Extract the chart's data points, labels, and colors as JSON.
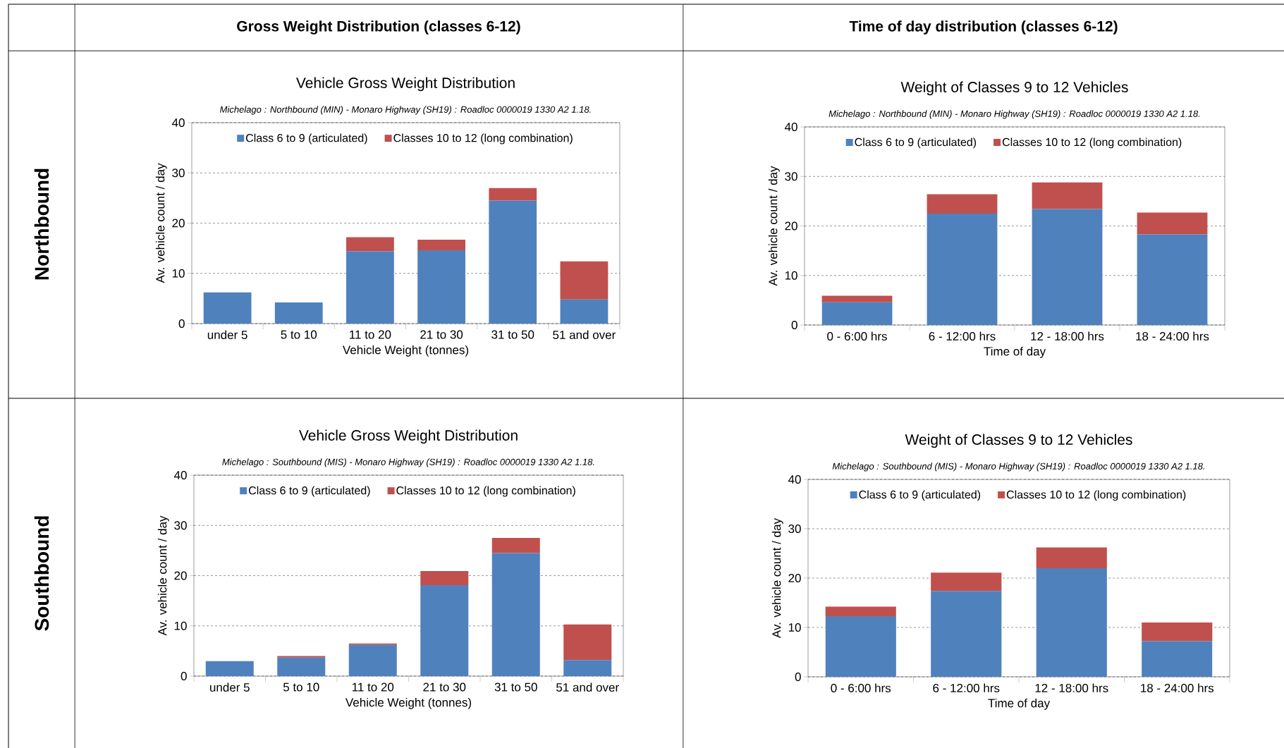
{
  "chart_data": [
    {
      "type": "bar",
      "title": "Vehicle Gross Weight Distribution",
      "subtitle": "Michelago : Northbound (MIN) - Monaro Highway (SH19) : Roadloc 0000019 1330 A2  1.18.",
      "xlabel": "Vehicle Weight (tonnes)",
      "ylabel": "Av. vehicle count / day",
      "annotations": [
        "Gross Weight Distribution (classes 6-12)",
        "Northbound"
      ],
      "categories": [
        "under 5",
        "5 to 10",
        "11 to 20",
        "21 to 30",
        "31 to 50",
        "51 and over"
      ],
      "stacked": true,
      "ylim": [
        0,
        40
      ],
      "yticks": [
        0,
        10,
        20,
        30,
        40
      ],
      "grid": "y",
      "legend": "top",
      "series": [
        {
          "name": "Class 6 to 9 (articulated)",
          "color": "#4f81bd",
          "values": [
            6.2,
            4.2,
            14.4,
            14.6,
            24.5,
            4.8
          ]
        },
        {
          "name": "Classes 10 to 12 (long combination)",
          "color": "#c0504d",
          "values": [
            0,
            0,
            2.8,
            2.1,
            2.5,
            7.6
          ]
        }
      ]
    },
    {
      "type": "bar",
      "title": "Weight of Classes 9 to 12 Vehicles",
      "subtitle": "Michelago : Northbound (MIN) - Monaro Highway (SH19) : Roadloc 0000019 1330 A2  1.18.",
      "xlabel": "Time of day",
      "ylabel": "Av. vehicle count / day",
      "annotations": [
        "Time of day distribution (classes 6-12)"
      ],
      "categories": [
        "0 - 6:00 hrs",
        "6 - 12:00 hrs",
        "12 - 18:00 hrs",
        "18 - 24:00 hrs"
      ],
      "stacked": true,
      "ylim": [
        0,
        40
      ],
      "yticks": [
        0,
        10,
        20,
        30,
        40
      ],
      "grid": "y",
      "legend": "top",
      "series": [
        {
          "name": "Class 6 to 9 (articulated)",
          "color": "#4f81bd",
          "values": [
            4.6,
            22.5,
            23.4,
            18.3
          ]
        },
        {
          "name": "Classes 10 to 12 (long combination)",
          "color": "#c0504d",
          "values": [
            1.3,
            3.9,
            5.4,
            4.4
          ]
        }
      ]
    },
    {
      "type": "bar",
      "title": "Vehicle Gross Weight Distribution",
      "subtitle": "Michelago : Southbound (MIS) - Monaro Highway (SH19) : Roadloc 0000019 1330 A2  1.18.",
      "xlabel": "Vehicle Weight (tonnes)",
      "ylabel": "Av. vehicle count / day",
      "annotations": [
        "Southbound"
      ],
      "categories": [
        "under 5",
        "5 to 10",
        "11 to 20",
        "21 to 30",
        "31 to 50",
        "51 and over"
      ],
      "stacked": true,
      "ylim": [
        0,
        40
      ],
      "yticks": [
        0,
        10,
        20,
        30,
        40
      ],
      "grid": "y",
      "legend": "top",
      "series": [
        {
          "name": "Class 6 to 9 (articulated)",
          "color": "#4f81bd",
          "values": [
            3.0,
            3.7,
            6.2,
            18.1,
            24.5,
            3.2
          ]
        },
        {
          "name": "Classes 10 to 12 (long combination)",
          "color": "#c0504d",
          "values": [
            0,
            0.3,
            0.3,
            2.8,
            3.0,
            7.1
          ]
        }
      ]
    },
    {
      "type": "bar",
      "title": "Weight of Classes 9 to 12 Vehicles",
      "subtitle": "Michelago : Southbound (MIS) - Monaro Highway (SH19) : Roadloc 0000019 1330 A2  1.18.",
      "xlabel": "Time of day",
      "ylabel": "Av. vehicle count / day",
      "categories": [
        "0 - 6:00 hrs",
        "6 - 12:00 hrs",
        "12 - 18:00 hrs",
        "18 - 24:00 hrs"
      ],
      "stacked": true,
      "ylim": [
        0,
        40
      ],
      "yticks": [
        0,
        10,
        20,
        30,
        40
      ],
      "grid": "y",
      "legend": "top",
      "series": [
        {
          "name": "Class 6 to 9 (articulated)",
          "color": "#4f81bd",
          "values": [
            12.3,
            17.4,
            22.0,
            7.2
          ]
        },
        {
          "name": "Classes 10 to 12 (long combination)",
          "color": "#c0504d",
          "values": [
            1.9,
            3.7,
            4.2,
            3.8
          ]
        }
      ]
    }
  ]
}
